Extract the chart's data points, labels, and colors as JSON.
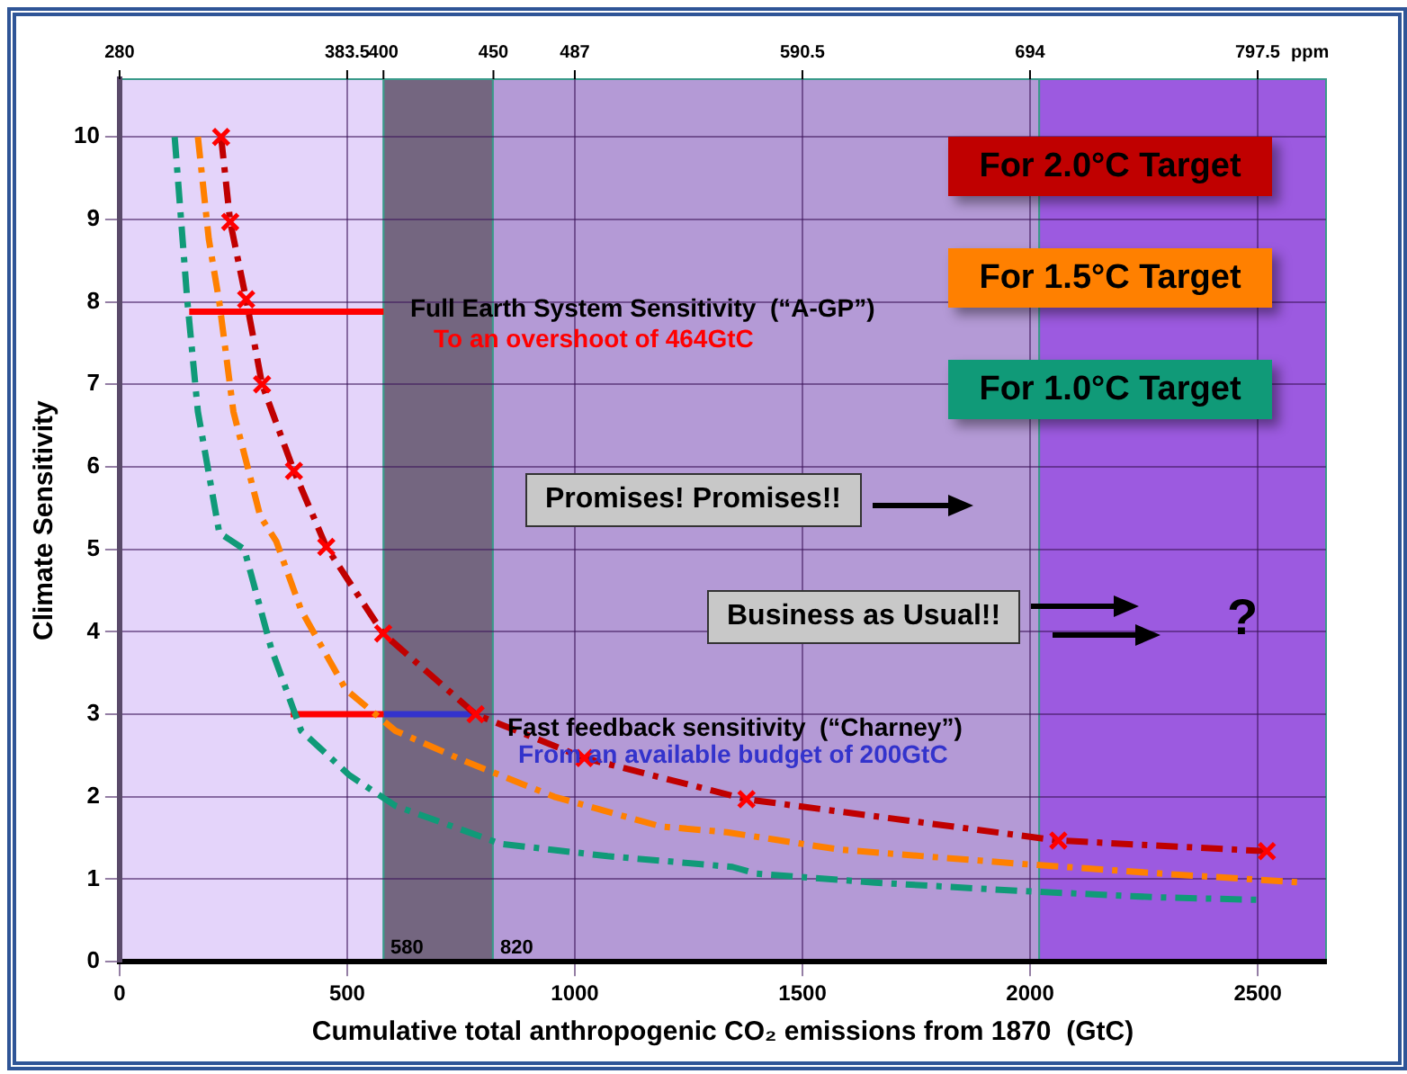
{
  "chart_data": {
    "type": "line",
    "xlabel": "Cumulative total anthropogenic CO₂ emissions from 1870  (GtC)",
    "ylabel": "Climate Sensitivity",
    "x2label": "ppm",
    "xlim": [
      0,
      2650
    ],
    "xticks": [
      0,
      500,
      1000,
      1500,
      2000,
      2500
    ],
    "ylim": [
      0,
      10.7
    ],
    "yticks": [
      0,
      1,
      2,
      3,
      4,
      5,
      6,
      7,
      8,
      9,
      10
    ],
    "x2lim": [
      280,
      828.6
    ],
    "x2ticks": [
      280,
      383.5,
      400,
      450,
      487,
      590.5,
      694,
      797.5
    ],
    "grid": true,
    "legend": "top right",
    "series": [
      {
        "name": "For 2.0°C Target",
        "color": "#c00000",
        "line_style": "dashdot",
        "marker": "cross",
        "x": [
          223,
          243,
          278,
          313,
          383,
          454,
          579,
          782,
          1021,
          1377,
          2062,
          2520
        ],
        "values": [
          10,
          8.97,
          8.03,
          7.0,
          5.95,
          5.03,
          3.98,
          3.0,
          2.47,
          1.97,
          1.47,
          1.34
        ]
      },
      {
        "name": "For 1.5°C Target",
        "color": "#ff8000",
        "line_style": "dashdot",
        "marker": "none",
        "x": [
          172,
          196,
          219,
          250,
          309,
          344,
          399,
          497,
          606,
          759,
          955,
          1189,
          1334,
          1581,
          1972,
          2285,
          2598
        ],
        "values": [
          10,
          8.76,
          8.0,
          6.67,
          5.4,
          5.1,
          4.26,
          3.3,
          2.8,
          2.43,
          2.0,
          1.64,
          1.57,
          1.36,
          1.19,
          1.07,
          0.96
        ]
      },
      {
        "name": "For 1.0°C Target",
        "color": "#109a78",
        "line_style": "dashdot",
        "marker": "none",
        "x": [
          121,
          149,
          172,
          219,
          274,
          333,
          399,
          505,
          606,
          837,
          1072,
          1346,
          1397,
          1659,
          1972,
          2285,
          2508
        ],
        "values": [
          10,
          8.0,
          6.67,
          5.2,
          5.0,
          3.8,
          2.8,
          2.26,
          1.89,
          1.43,
          1.28,
          1.15,
          1.07,
          0.96,
          0.86,
          0.78,
          0.75
        ]
      },
      {
        "color": "#ff0000",
        "line_style": "solid",
        "marker": "none",
        "x": [
          153,
          580
        ],
        "values": [
          7.88,
          7.88
        ]
      },
      {
        "color": "#ff0000",
        "line_style": "solid",
        "marker": "none",
        "x": [
          376,
          580
        ],
        "values": [
          3.0,
          3.0
        ]
      },
      {
        "color": "#3333cc",
        "line_style": "solid",
        "marker": "none",
        "x": [
          580,
          782
        ],
        "values": [
          3.0,
          3.0
        ]
      }
    ],
    "bands": [
      {
        "axis": "x",
        "from": 0,
        "to": 580,
        "color": "#e4d4fa"
      },
      {
        "axis": "x",
        "from": 580,
        "to": 820,
        "color": "#746680"
      },
      {
        "axis": "x",
        "from": 820,
        "to": 2020,
        "color": "#b49ad6"
      },
      {
        "axis": "x",
        "from": 2020,
        "to": 2650,
        "color": "#9c5ae0"
      }
    ],
    "annotations": [
      "Full Earth System Sensitivity  (“A-GP”)",
      "To an overshoot of 464GtC",
      "Fast feedback sensitivity  (“Charney”)",
      "From an available budget of 200GtC",
      "Promises! Promises!!",
      "Business as Usual!!",
      "?",
      "580",
      "820"
    ]
  }
}
